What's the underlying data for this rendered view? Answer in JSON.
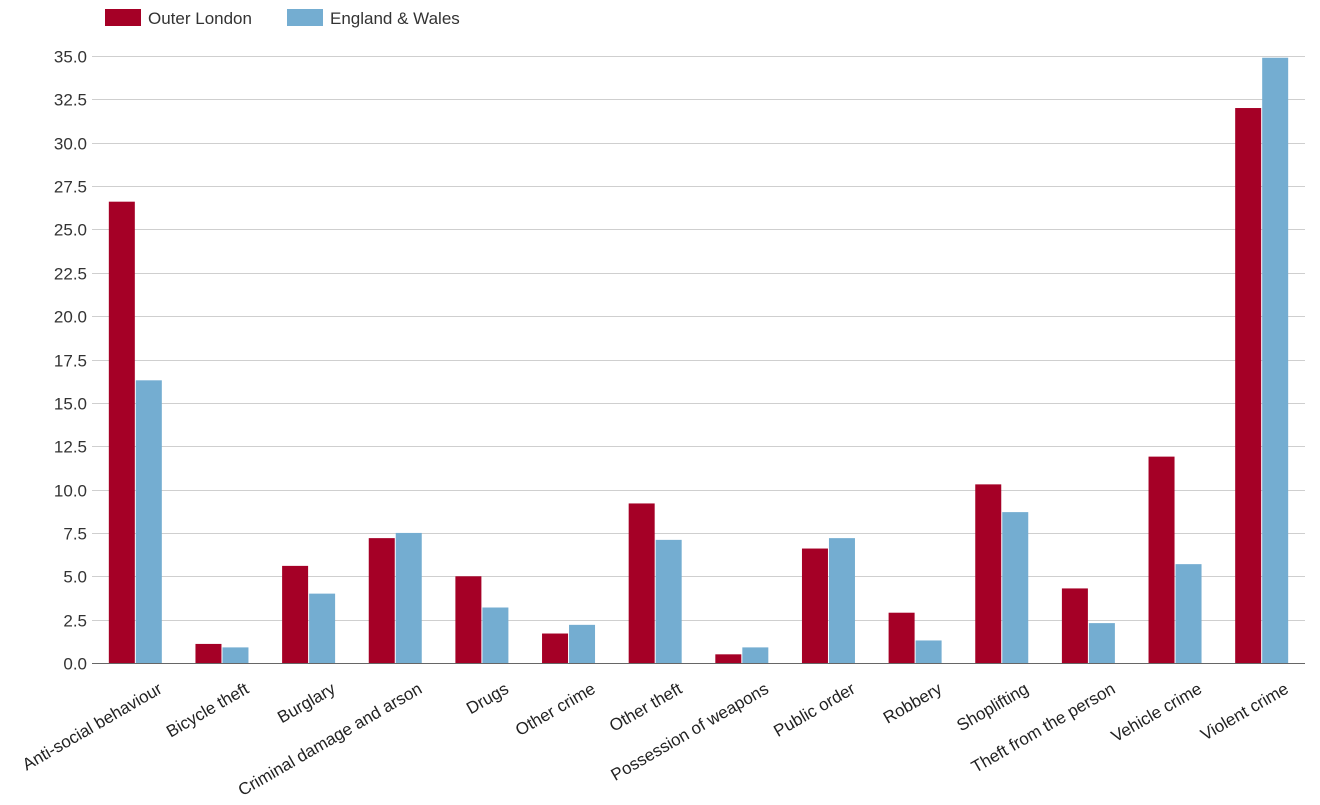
{
  "chart_data": {
    "type": "bar",
    "title": "",
    "xlabel": "",
    "ylabel": "",
    "ylim": [
      0,
      35
    ],
    "ytick_step": 2.5,
    "ytick_decimals": 1,
    "grid": true,
    "legend_position": "top-left",
    "categories": [
      "Anti-social behaviour",
      "Bicycle theft",
      "Burglary",
      "Criminal damage and arson",
      "Drugs",
      "Other crime",
      "Other theft",
      "Possession of weapons",
      "Public order",
      "Robbery",
      "Shoplifting",
      "Theft from the person",
      "Vehicle crime",
      "Violent crime"
    ],
    "series": [
      {
        "name": "Outer London",
        "color": "#a50026",
        "values": [
          26.6,
          1.1,
          5.6,
          7.2,
          5.0,
          1.7,
          9.2,
          0.5,
          6.6,
          2.9,
          10.3,
          4.3,
          11.9,
          32.0
        ]
      },
      {
        "name": "England & Wales",
        "color": "#74add1",
        "values": [
          16.3,
          0.9,
          4.0,
          7.5,
          3.2,
          2.2,
          7.1,
          0.9,
          7.2,
          1.3,
          8.7,
          2.3,
          5.7,
          34.9
        ]
      }
    ]
  }
}
